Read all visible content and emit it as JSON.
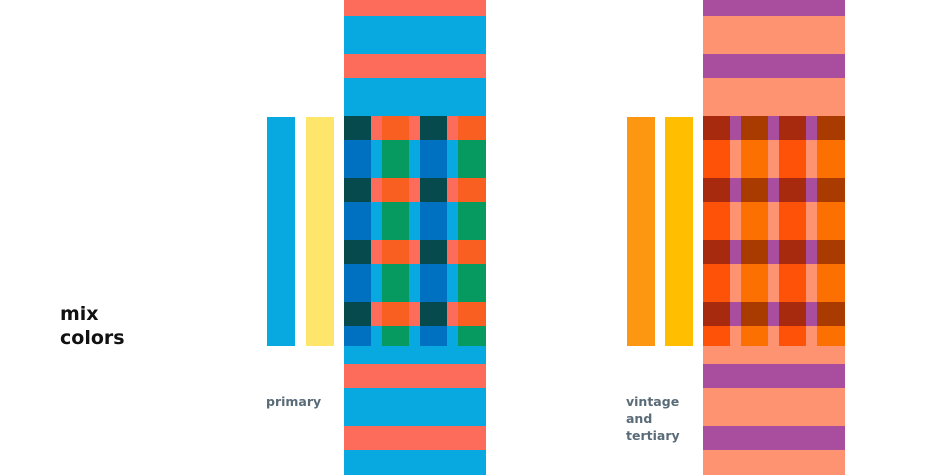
{
  "title": {
    "line1": "mix",
    "line2": "colors"
  },
  "groups": [
    {
      "label_lines": [
        "primary"
      ],
      "bar_colors": [
        "#08a8e0",
        "#ffe66b"
      ],
      "stripe_colors": {
        "narrow": "#fd6b5a",
        "wide": "#08a8e0"
      },
      "cell_colors": {
        "a_on_narrow": "#064a4e",
        "a_on_wide": "#0070c0",
        "b_on_narrow": "#fa5f22",
        "b_on_wide": "#079a60"
      }
    },
    {
      "label_lines": [
        "vintage",
        "and",
        "tertiary"
      ],
      "bar_colors": [
        "#fd9610",
        "#ffbf00"
      ],
      "stripe_colors": {
        "narrow": "#a94d9e",
        "wide": "#fd9370"
      },
      "cell_colors": {
        "a_on_narrow": "#a82a0e",
        "a_on_wide": "#fd5208",
        "b_on_narrow": "#a93a00",
        "b_on_wide": "#fb7000"
      }
    }
  ]
}
